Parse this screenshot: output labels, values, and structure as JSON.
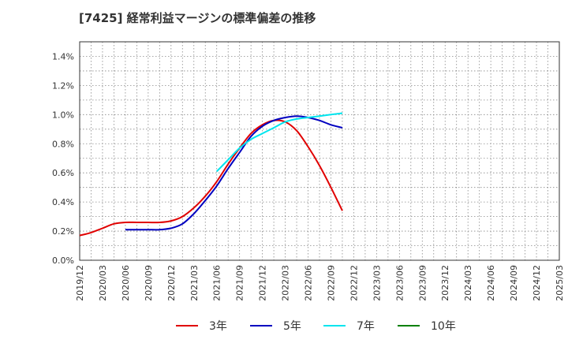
{
  "chart_data": {
    "type": "line",
    "title": "[7425]  経常利益マージンの標準偏差の推移",
    "xlabel": "",
    "ylabel": "",
    "x_ticks": [
      "2019/12",
      "2020/03",
      "2020/06",
      "2020/09",
      "2020/12",
      "2021/03",
      "2021/06",
      "2021/09",
      "2021/12",
      "2022/03",
      "2022/06",
      "2022/09",
      "2022/12",
      "2023/03",
      "2023/06",
      "2023/09",
      "2023/12",
      "2024/03",
      "2024/06",
      "2024/09",
      "2024/12",
      "2025/03"
    ],
    "y_ticks": [
      "0.0%",
      "0.2%",
      "0.4%",
      "0.6%",
      "0.8%",
      "1.0%",
      "1.2%",
      "1.4%"
    ],
    "ylim": [
      0,
      1.5
    ],
    "grid": true,
    "legend_position": "bottom",
    "series": [
      {
        "name": "3年",
        "color": "#e00000",
        "values": [
          [
            0,
            0.17
          ],
          [
            1,
            0.19
          ],
          [
            2,
            0.22
          ],
          [
            3,
            0.25
          ],
          [
            4,
            0.26
          ],
          [
            5,
            0.26
          ],
          [
            6,
            0.26
          ],
          [
            7,
            0.26
          ],
          [
            8,
            0.27
          ],
          [
            9,
            0.3
          ],
          [
            10,
            0.36
          ],
          [
            11,
            0.44
          ],
          [
            12,
            0.54
          ],
          [
            13,
            0.66
          ],
          [
            14,
            0.77
          ],
          [
            15,
            0.87
          ],
          [
            16,
            0.93
          ],
          [
            17,
            0.96
          ],
          [
            18,
            0.95
          ],
          [
            19,
            0.89
          ],
          [
            20,
            0.78
          ],
          [
            21,
            0.65
          ],
          [
            22,
            0.5
          ],
          [
            23,
            0.34
          ]
        ]
      },
      {
        "name": "5年",
        "color": "#0000c0",
        "values": [
          [
            4,
            0.21
          ],
          [
            5,
            0.21
          ],
          [
            6,
            0.21
          ],
          [
            7,
            0.21
          ],
          [
            8,
            0.22
          ],
          [
            9,
            0.25
          ],
          [
            10,
            0.32
          ],
          [
            11,
            0.41
          ],
          [
            12,
            0.51
          ],
          [
            13,
            0.63
          ],
          [
            14,
            0.74
          ],
          [
            15,
            0.85
          ],
          [
            16,
            0.92
          ],
          [
            17,
            0.96
          ],
          [
            18,
            0.98
          ],
          [
            19,
            0.99
          ],
          [
            20,
            0.98
          ],
          [
            21,
            0.96
          ],
          [
            22,
            0.93
          ],
          [
            23,
            0.91
          ]
        ]
      },
      {
        "name": "7年",
        "color": "#00e5ee",
        "values": [
          [
            12,
            0.61
          ],
          [
            13,
            0.69
          ],
          [
            14,
            0.77
          ],
          [
            15,
            0.83
          ],
          [
            16,
            0.87
          ],
          [
            17,
            0.91
          ],
          [
            18,
            0.95
          ],
          [
            19,
            0.97
          ],
          [
            20,
            0.98
          ],
          [
            21,
            0.99
          ],
          [
            22,
            1.0
          ],
          [
            23,
            1.01
          ]
        ]
      },
      {
        "name": "10年",
        "color": "#008000",
        "values": []
      }
    ]
  }
}
